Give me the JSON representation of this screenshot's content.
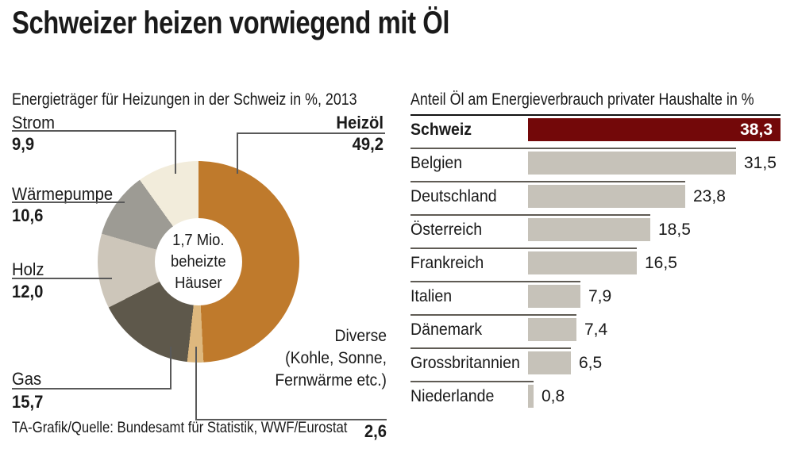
{
  "header": {
    "title": "Schweizer heizen vorwiegend mit Öl"
  },
  "donut_section": {
    "subtitle": "Energieträger für Heizungen in der Schweiz in %, 2013",
    "center": {
      "line1": "1,7 Mio.",
      "line2": "beheizte",
      "line3": "Häuser"
    },
    "callouts": {
      "strom": {
        "label": "Strom",
        "value": "9,9"
      },
      "heizoel": {
        "label": "Heizöl",
        "value": "49,2"
      },
      "waermepumpe": {
        "label": "Wärmepumpe",
        "value": "10,6"
      },
      "holz": {
        "label": "Holz",
        "value": "12,0"
      },
      "gas": {
        "label": "Gas",
        "value": "15,7"
      },
      "diverse": {
        "label_line1": "Diverse",
        "label_line2": "(Kohle, Sonne,",
        "label_line3": "Fernwärme etc.)",
        "value": "2,6"
      }
    }
  },
  "bar_section": {
    "subtitle": "Anteil Öl am Energieverbrauch privater Haushalte in %"
  },
  "footer": {
    "source": "TA-Grafik/Quelle: Bundesamt für Statistik, WWF/Eurostat"
  },
  "colors": {
    "text": "#1a1a1a",
    "leader_line": "#595959",
    "separator": "#5f5b54",
    "separator_highlight": "#111111"
  },
  "chart_data": [
    {
      "type": "pie",
      "subtype": "donut",
      "title": "Energieträger für Heizungen in der Schweiz in %, 2013",
      "unit": "%",
      "center_annotation": "1,7 Mio. beheizte Häuser",
      "start_angle_deg": 0,
      "direction": "clockwise",
      "segments": [
        {
          "label": "Heizöl",
          "value": 49.2,
          "display_value": "49,2",
          "color": "#bf7a2c"
        },
        {
          "label": "Diverse (Kohle, Sonne, Fernwärme etc.)",
          "value": 2.6,
          "display_value": "2,6",
          "color": "#deb87e"
        },
        {
          "label": "Gas",
          "value": 15.7,
          "display_value": "15,7",
          "color": "#5e584b"
        },
        {
          "label": "Holz",
          "value": 12.0,
          "display_value": "12,0",
          "color": "#cdc6ba"
        },
        {
          "label": "Wärmepumpe",
          "value": 10.6,
          "display_value": "10,6",
          "color": "#9d9b94"
        },
        {
          "label": "Strom",
          "value": 9.9,
          "display_value": "9,9",
          "color": "#f2ecdb"
        }
      ]
    },
    {
      "type": "bar",
      "orientation": "horizontal",
      "title": "Anteil Öl am Energieverbrauch privater Haushalte in %",
      "unit": "%",
      "xlim": [
        0,
        38.3
      ],
      "categories": [
        "Schweiz",
        "Belgien",
        "Deutschland",
        "Österreich",
        "Frankreich",
        "Italien",
        "Dänemark",
        "Grossbritannien",
        "Niederlande"
      ],
      "values": [
        38.3,
        31.5,
        23.8,
        18.5,
        16.5,
        7.9,
        7.4,
        6.5,
        0.8
      ],
      "display_values": [
        "38,3",
        "31,5",
        "23,8",
        "18,5",
        "16,5",
        "7,9",
        "7,4",
        "6,5",
        "0,8"
      ],
      "highlight_category": "Schweiz",
      "legend": "none",
      "grid": false,
      "colors": {
        "default_bar": "#c6c2b9",
        "highlight_bar": "#730809",
        "value_text": "#1a1a1a",
        "highlight_value_text": "#ffffff"
      }
    }
  ]
}
